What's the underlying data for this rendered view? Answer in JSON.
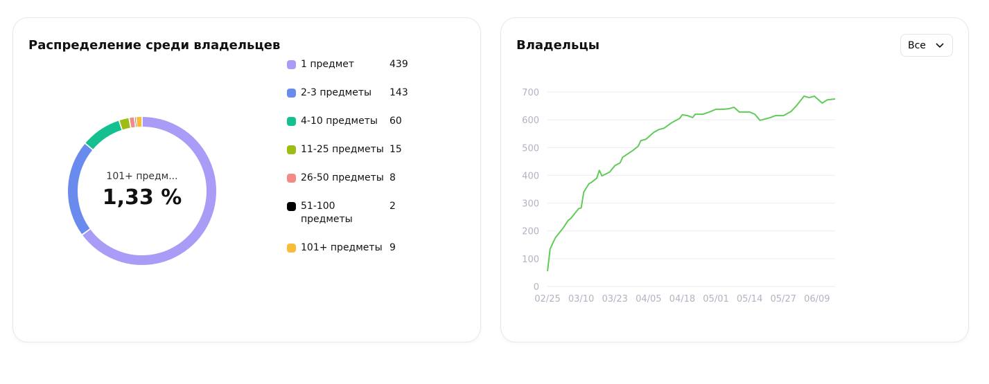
{
  "chart_data": [
    {
      "type": "donut",
      "title": "Распределение среди владельцев",
      "categories": [
        "1 предмет",
        "2-3 предметы",
        "4-10 предметы",
        "11-25 предметы",
        "26-50 предметы",
        "51-100 предметы",
        "101+ предметы"
      ],
      "values": [
        439,
        143,
        60,
        15,
        8,
        2,
        9
      ],
      "colors": [
        "#a99cf7",
        "#6a8bee",
        "#14c08f",
        "#9dbd14",
        "#f28a86",
        "#000000",
        "#f8bb3a"
      ],
      "center_label": "101+ предм...",
      "center_value": "1,33 %"
    },
    {
      "type": "line",
      "title": "Владельцы",
      "color": "#5fcb58",
      "x": [
        "02/25",
        "02/26",
        "02/28",
        "03/03",
        "03/05",
        "03/06",
        "03/09",
        "03/10",
        "03/11",
        "03/13",
        "03/14",
        "03/16",
        "03/17",
        "03/18",
        "03/21",
        "03/23",
        "03/25",
        "03/26",
        "03/30",
        "04/01",
        "04/02",
        "04/04",
        "04/07",
        "04/09",
        "04/11",
        "04/14",
        "04/17",
        "04/18",
        "04/20",
        "04/22",
        "04/23",
        "04/26",
        "04/29",
        "05/01",
        "05/04",
        "05/06",
        "05/08",
        "05/10",
        "05/14",
        "05/16",
        "05/18",
        "05/22",
        "05/24",
        "05/27",
        "05/30",
        "06/01",
        "06/04",
        "06/06",
        "06/08",
        "06/11",
        "06/13",
        "06/16"
      ],
      "values": [
        55,
        135,
        175,
        210,
        238,
        245,
        280,
        283,
        340,
        370,
        375,
        390,
        418,
        398,
        412,
        435,
        445,
        465,
        490,
        505,
        525,
        530,
        555,
        565,
        570,
        590,
        605,
        618,
        615,
        608,
        620,
        620,
        630,
        638,
        638,
        640,
        645,
        628,
        628,
        620,
        598,
        608,
        615,
        615,
        630,
        650,
        685,
        680,
        685,
        660,
        672,
        675
      ],
      "xlim": [
        "02/25",
        "06/16"
      ],
      "xticks": [
        "02/25",
        "03/10",
        "03/23",
        "04/05",
        "04/18",
        "05/01",
        "05/14",
        "05/27",
        "06/09"
      ],
      "ylim": [
        0,
        700
      ],
      "yticks": [
        0,
        100,
        200,
        300,
        400,
        500,
        600,
        700
      ],
      "grid": true
    }
  ],
  "dropdown": "Все"
}
